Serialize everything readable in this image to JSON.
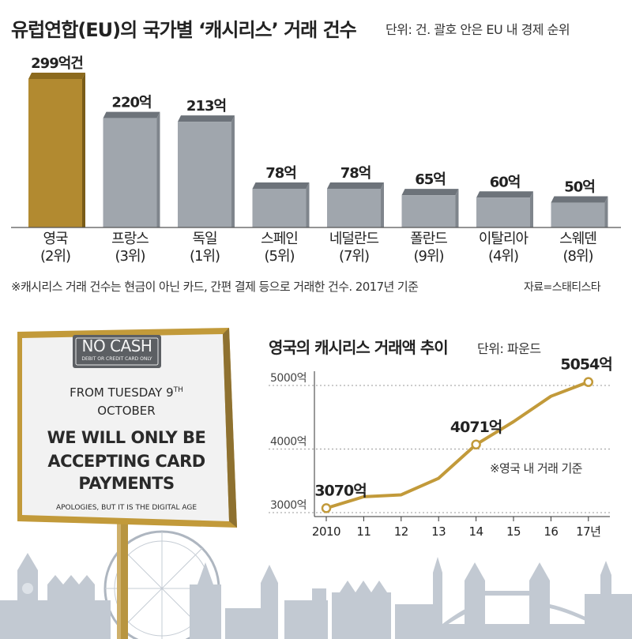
{
  "title": "유럽연합(EU)의 국가별 ‘캐시리스’ 거래 건수",
  "unit_note": "단위: 건. 괄호 안은 EU 내 경제 순위",
  "footnote": "※캐시리스 거래 건수는 현금이 아닌 카드, 간편 결제 등으로 거래한 건수. 2017년 기준",
  "source": "자료=스태티스타",
  "colors": {
    "highlight": "#b28a30",
    "bar": "#a0a6ad",
    "bar_top": "#6d737a",
    "line": "#c29a3a",
    "skyline": "#bcc3cc"
  },
  "chart_data": [
    {
      "type": "bar",
      "categories": [
        "영국",
        "프랑스",
        "독일",
        "스페인",
        "네덜란드",
        "폴란드",
        "이탈리아",
        "스웨덴"
      ],
      "ranks": [
        "(2위)",
        "(3위)",
        "(1위)",
        "(5위)",
        "(7위)",
        "(9위)",
        "(4위)",
        "(8위)"
      ],
      "values": [
        299,
        220,
        213,
        78,
        78,
        65,
        60,
        50
      ],
      "value_labels": [
        "299억건",
        "220억",
        "213억",
        "78억",
        "78억",
        "65억",
        "60억",
        "50억"
      ],
      "highlight": "영국"
    },
    {
      "type": "line",
      "title": "영국의 캐시리스 거래액 추이",
      "unit": "단위: 파운드",
      "note": "※영국 내 거래 기준",
      "x_labels": [
        "2010",
        "11",
        "12",
        "13",
        "14",
        "15",
        "16",
        "17년"
      ],
      "values": [
        3070,
        3250,
        3280,
        3540,
        4071,
        4430,
        4830,
        5054
      ],
      "labeled_points": [
        {
          "index": 0,
          "label": "3070억"
        },
        {
          "index": 4,
          "label": "4071억"
        },
        {
          "index": 7,
          "label": "5054억"
        }
      ],
      "y_ticks": [
        3000,
        4000,
        5000
      ],
      "y_tick_labels": [
        "3000억",
        "4000억",
        "5000억"
      ],
      "ylim": [
        3000,
        5000
      ]
    }
  ],
  "sign": {
    "header": "NO CASH",
    "subheader": "DEBIT OR CREDIT CARD ONLY",
    "line1": "FROM TUESDAY 9",
    "line1_sup": "TH",
    "line2": "OCTOBER",
    "line3": "WE WILL ONLY BE",
    "line4": "ACCEPTING CARD",
    "line5": "PAYMENTS",
    "apology": "APOLOGIES, BUT IT IS THE DIGITAL AGE"
  }
}
